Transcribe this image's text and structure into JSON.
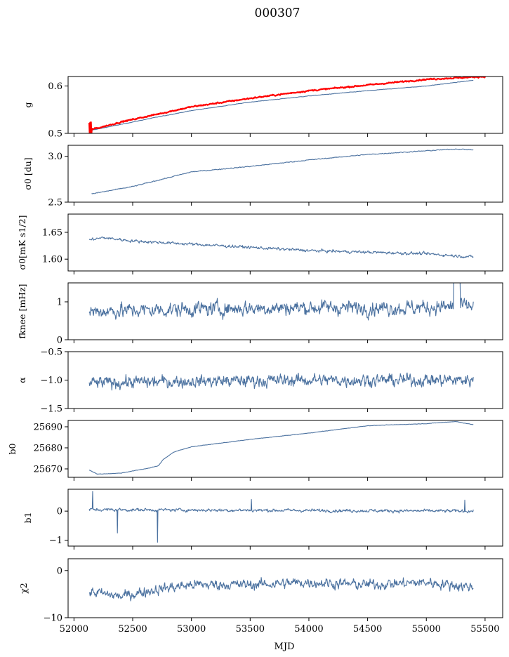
{
  "figure": {
    "title": "000307",
    "xlabel": "MJD",
    "xlim": [
      51950,
      55650
    ],
    "xticks": [
      52000,
      52500,
      53000,
      53500,
      54000,
      54500,
      55000,
      55500
    ],
    "xtick_labels": [
      "52000",
      "52500",
      "53000",
      "53500",
      "54000",
      "54500",
      "55000",
      "55500"
    ],
    "series_color": "#4c72a0",
    "overlay_color": "#ff0000"
  },
  "chart_data": [
    {
      "type": "line",
      "id": "g",
      "ylabel": "g",
      "ylim": [
        0.5,
        0.62
      ],
      "yticks": [
        0.5,
        0.6
      ],
      "ytick_labels": [
        "0.5",
        "0.6"
      ],
      "x_range": [
        52130,
        55400
      ],
      "series": [
        {
          "name": "g (blue)",
          "color": "#4c72a0",
          "knots": [
            [
              52130,
              0.506
            ],
            [
              52200,
              0.509
            ],
            [
              52400,
              0.519
            ],
            [
              52700,
              0.534
            ],
            [
              53000,
              0.548
            ],
            [
              53500,
              0.566
            ],
            [
              54000,
              0.579
            ],
            [
              54500,
              0.59
            ],
            [
              55000,
              0.6
            ],
            [
              55400,
              0.612
            ]
          ]
        },
        {
          "name": "g (red)",
          "color": "#ff0000",
          "knots": [
            [
              52130,
              0.508
            ],
            [
              52200,
              0.511
            ],
            [
              52400,
              0.524
            ],
            [
              52700,
              0.54
            ],
            [
              53000,
              0.556
            ],
            [
              53500,
              0.574
            ],
            [
              54000,
              0.59
            ],
            [
              54500,
              0.602
            ],
            [
              55000,
              0.614
            ],
            [
              55500,
              0.62
            ]
          ]
        }
      ]
    },
    {
      "type": "line",
      "id": "sigma0_du",
      "ylabel": "σ0 [du]",
      "ylim": [
        2.5,
        3.12
      ],
      "yticks": [
        2.5,
        3.0
      ],
      "ytick_labels": [
        "2.5",
        "3.0"
      ],
      "x_range": [
        52150,
        55400
      ],
      "series": [
        {
          "name": "sigma0",
          "color": "#4c72a0",
          "knots": [
            [
              52150,
              2.59
            ],
            [
              52500,
              2.67
            ],
            [
              53000,
              2.83
            ],
            [
              53500,
              2.89
            ],
            [
              54000,
              2.96
            ],
            [
              54500,
              3.02
            ],
            [
              55000,
              3.06
            ],
            [
              55250,
              3.08
            ],
            [
              55400,
              3.07
            ]
          ]
        }
      ]
    },
    {
      "type": "line",
      "id": "sigma0_mK",
      "ylabel": "σ0[mK s1/2]",
      "ylim": [
        1.578,
        1.684
      ],
      "yticks": [
        1.6,
        1.65
      ],
      "ytick_labels": [
        "1.60",
        "1.65"
      ],
      "x_range": [
        52130,
        55400
      ],
      "series": [
        {
          "name": "sigma0_mK",
          "color": "#4c72a0",
          "knots": [
            [
              52130,
              1.636
            ],
            [
              52250,
              1.64
            ],
            [
              52500,
              1.634
            ],
            [
              53000,
              1.628
            ],
            [
              53500,
              1.622
            ],
            [
              54000,
              1.616
            ],
            [
              54500,
              1.613
            ],
            [
              55000,
              1.61
            ],
            [
              55400,
              1.604
            ]
          ]
        }
      ]
    },
    {
      "type": "line",
      "id": "fknee",
      "ylabel": "fknee [mHz]",
      "ylim": [
        0,
        1.5
      ],
      "yticks": [
        0,
        1
      ],
      "ytick_labels": [
        "0",
        "1"
      ],
      "x_range": [
        52130,
        55400
      ],
      "series": [
        {
          "name": "fknee",
          "color": "#4c72a0",
          "knots": [
            [
              52130,
              0.75
            ],
            [
              52600,
              0.78
            ],
            [
              53200,
              0.82
            ],
            [
              54000,
              0.85
            ],
            [
              54800,
              0.84
            ],
            [
              55400,
              0.88
            ]
          ]
        }
      ]
    },
    {
      "type": "line",
      "id": "alpha",
      "ylabel": "α",
      "ylim": [
        -1.5,
        -0.5
      ],
      "yticks": [
        -1.5,
        -1.0,
        -0.5
      ],
      "ytick_labels": [
        "−1.5",
        "−1.0",
        "−0.5"
      ],
      "x_range": [
        52130,
        55400
      ],
      "series": [
        {
          "name": "alpha",
          "color": "#4c72a0",
          "knots": [
            [
              52130,
              -1.05
            ],
            [
              53000,
              -1.02
            ],
            [
              54000,
              -1.0
            ],
            [
              55400,
              -1.0
            ]
          ]
        }
      ]
    },
    {
      "type": "line",
      "id": "b0",
      "ylabel": "b0",
      "ylim": [
        25666,
        25693
      ],
      "yticks": [
        25670,
        25680,
        25690
      ],
      "ytick_labels": [
        "25670",
        "25680",
        "25690"
      ],
      "x_range": [
        52130,
        55400
      ],
      "series": [
        {
          "name": "b0",
          "color": "#4c72a0",
          "knots": [
            [
              52130,
              25669.5
            ],
            [
              52200,
              25667.5
            ],
            [
              52400,
              25668.0
            ],
            [
              52650,
              25670.5
            ],
            [
              52720,
              25671.5
            ],
            [
              52760,
              25674.5
            ],
            [
              52850,
              25678.0
            ],
            [
              53000,
              25680.5
            ],
            [
              53500,
              25684.0
            ],
            [
              54000,
              25687.0
            ],
            [
              54500,
              25690.5
            ],
            [
              55000,
              25691.5
            ],
            [
              55250,
              25692.5
            ],
            [
              55400,
              25691.0
            ]
          ]
        }
      ]
    },
    {
      "type": "line",
      "id": "b1",
      "ylabel": "b1",
      "ylim": [
        -1.2,
        0.75
      ],
      "yticks": [
        -1,
        0
      ],
      "ytick_labels": [
        "−1",
        "0"
      ],
      "x_range": [
        52130,
        55400
      ],
      "series": [
        {
          "name": "b1",
          "color": "#4c72a0",
          "knots": [
            [
              52130,
              0.05
            ],
            [
              55400,
              0.0
            ]
          ]
        }
      ]
    },
    {
      "type": "line",
      "id": "chi2",
      "ylabel": "χ2",
      "ylim": [
        -10,
        2.5
      ],
      "yticks": [
        -10,
        0
      ],
      "ytick_labels": [
        "−10",
        "0"
      ],
      "x_range": [
        52130,
        55400
      ],
      "series": [
        {
          "name": "chi2",
          "color": "#4c72a0",
          "knots": [
            [
              52130,
              -4.5
            ],
            [
              52400,
              -5.5
            ],
            [
              52700,
              -4.0
            ],
            [
              53000,
              -3.0
            ],
            [
              53500,
              -3.0
            ],
            [
              54000,
              -2.5
            ],
            [
              54500,
              -3.0
            ],
            [
              55000,
              -2.5
            ],
            [
              55400,
              -3.5
            ]
          ]
        }
      ]
    }
  ]
}
